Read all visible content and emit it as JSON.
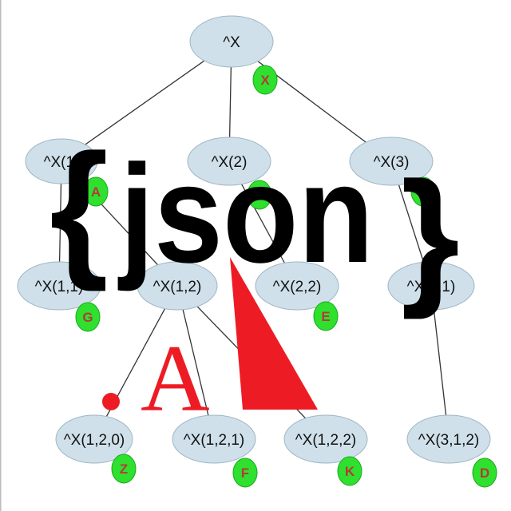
{
  "colors": {
    "node_fill": "#cfe0ea",
    "node_stroke": "#9fb6c4",
    "edge": "#333333",
    "badge_fill": "#2fe02f",
    "badge_stroke": "#1aa81a",
    "badge_text": "#b33a3a",
    "logo_red": "#ed1c24",
    "json_text": "#000000"
  },
  "tree": {
    "nodes": [
      {
        "id": "root",
        "label": "^X",
        "badge": "X"
      },
      {
        "id": "n1",
        "label": "^X(1)",
        "badge": "A"
      },
      {
        "id": "n2",
        "label": "^X(2)",
        "badge": "B"
      },
      {
        "id": "n3",
        "label": "^X(3)",
        "badge": "C"
      },
      {
        "id": "n11",
        "label": "^X(1,1)",
        "badge": "G"
      },
      {
        "id": "n12",
        "label": "^X(1,2)",
        "badge": ""
      },
      {
        "id": "n22",
        "label": "^X(2,2)",
        "badge": "E"
      },
      {
        "id": "n31",
        "label": "^X(3,1)",
        "badge": ""
      },
      {
        "id": "n120",
        "label": "^X(1,2,0)",
        "badge": "Z"
      },
      {
        "id": "n121",
        "label": "^X(1,2,1)",
        "badge": "F"
      },
      {
        "id": "n122",
        "label": "^X(1,2,2)",
        "badge": "K"
      },
      {
        "id": "n312",
        "label": "^X(3,1,2)",
        "badge": "D"
      }
    ],
    "edges": [
      [
        "root",
        "n1"
      ],
      [
        "root",
        "n2"
      ],
      [
        "root",
        "n3"
      ],
      [
        "n1",
        "n11"
      ],
      [
        "n1",
        "n12"
      ],
      [
        "n2",
        "n22"
      ],
      [
        "n3",
        "n31"
      ],
      [
        "n12",
        "n120"
      ],
      [
        "n12",
        "n121"
      ],
      [
        "n12",
        "n122"
      ],
      [
        "n31",
        "n312"
      ]
    ]
  },
  "logo": {
    "open_brace": "{",
    "word": "json",
    "close_brace": "}",
    "letter": "A"
  }
}
